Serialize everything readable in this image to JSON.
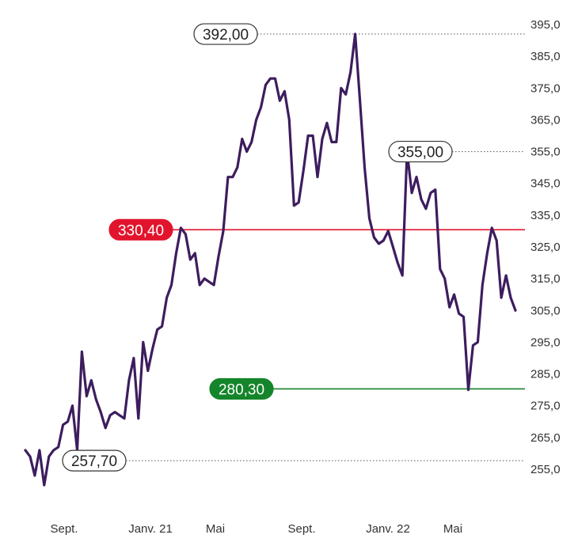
{
  "chart_data": {
    "type": "line",
    "title": "",
    "xlabel": "",
    "ylabel": "",
    "ylim": [
      245,
      400
    ],
    "y_ticks": [
      "395,0",
      "385,0",
      "375,0",
      "365,0",
      "355,0",
      "345,0",
      "335,0",
      "325,0",
      "315,0",
      "305,0",
      "295,0",
      "285,0",
      "275,0",
      "265,0",
      "255,0"
    ],
    "x_ticks": [
      "Sept.",
      "Janv. 21",
      "Mai",
      "Sept.",
      "Janv. 22",
      "Mai"
    ],
    "grid": false,
    "series": [
      {
        "color": "#3d1d5e",
        "values": [
          261,
          259,
          253,
          261,
          250,
          259,
          261,
          262,
          269,
          270,
          275,
          261,
          292,
          278,
          283,
          277,
          273,
          268,
          272,
          273,
          272,
          271,
          283,
          290,
          271,
          295,
          286,
          293,
          299,
          300,
          309,
          313,
          323,
          331,
          329,
          321,
          323,
          313,
          315,
          314,
          313,
          322,
          330,
          347,
          347,
          350,
          359,
          355,
          358,
          365,
          369,
          376,
          378,
          378,
          371,
          374,
          365,
          338,
          339,
          349,
          360,
          360,
          347,
          359,
          364,
          358,
          358,
          375,
          373,
          380,
          392,
          371,
          350,
          334,
          328,
          326,
          327,
          330,
          325,
          320,
          316,
          355,
          342,
          347,
          340,
          337,
          342,
          343,
          318,
          315,
          306,
          310,
          304,
          303,
          280,
          294,
          295,
          313,
          323,
          331,
          327,
          309,
          316,
          309,
          305
        ]
      }
    ],
    "reference_lines": [
      {
        "label": "392,00",
        "value": 392.0,
        "style": "dotted",
        "color": "#555555"
      },
      {
        "label": "355,00",
        "value": 355.0,
        "style": "dotted",
        "color": "#555555"
      },
      {
        "label": "330,40",
        "value": 330.4,
        "style": "solid",
        "color": "#e2142d"
      },
      {
        "label": "280,30",
        "value": 280.3,
        "style": "solid",
        "color": "#14852a"
      },
      {
        "label": "257,70",
        "value": 257.7,
        "style": "dotted",
        "color": "#555555"
      }
    ],
    "colors": {
      "line": "#3d1d5e",
      "resistance": "#e2142d",
      "support": "#14852a",
      "dotted": "#555555"
    }
  }
}
